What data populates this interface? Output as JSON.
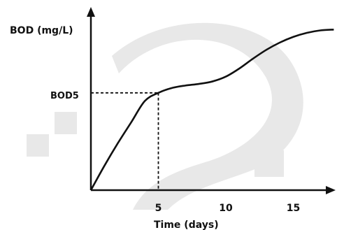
{
  "chart_data": {
    "type": "line",
    "ylabel": "BOD (mg/L)",
    "xlabel": "Time (days)",
    "xlim": [
      0,
      18
    ],
    "ylim": [
      0,
      1.0
    ],
    "x_ticks": [
      5,
      10,
      15
    ],
    "x_tick_labels": [
      "5",
      "10",
      "15"
    ],
    "y_marker": {
      "label": "BOD5",
      "x": 5,
      "y": 0.6
    },
    "grid": false,
    "series": [
      {
        "x": [
          0,
          1,
          2,
          3,
          4,
          5,
          6,
          7,
          8,
          9,
          10,
          11,
          12,
          13,
          14,
          15,
          16,
          17,
          18
        ],
        "values": [
          0,
          0.15,
          0.29,
          0.42,
          0.55,
          0.6,
          0.63,
          0.645,
          0.655,
          0.67,
          0.7,
          0.75,
          0.81,
          0.865,
          0.91,
          0.945,
          0.97,
          0.985,
          0.99
        ]
      }
    ]
  },
  "colors": {
    "line": "#111111",
    "watermark": "#e8e8e8"
  }
}
